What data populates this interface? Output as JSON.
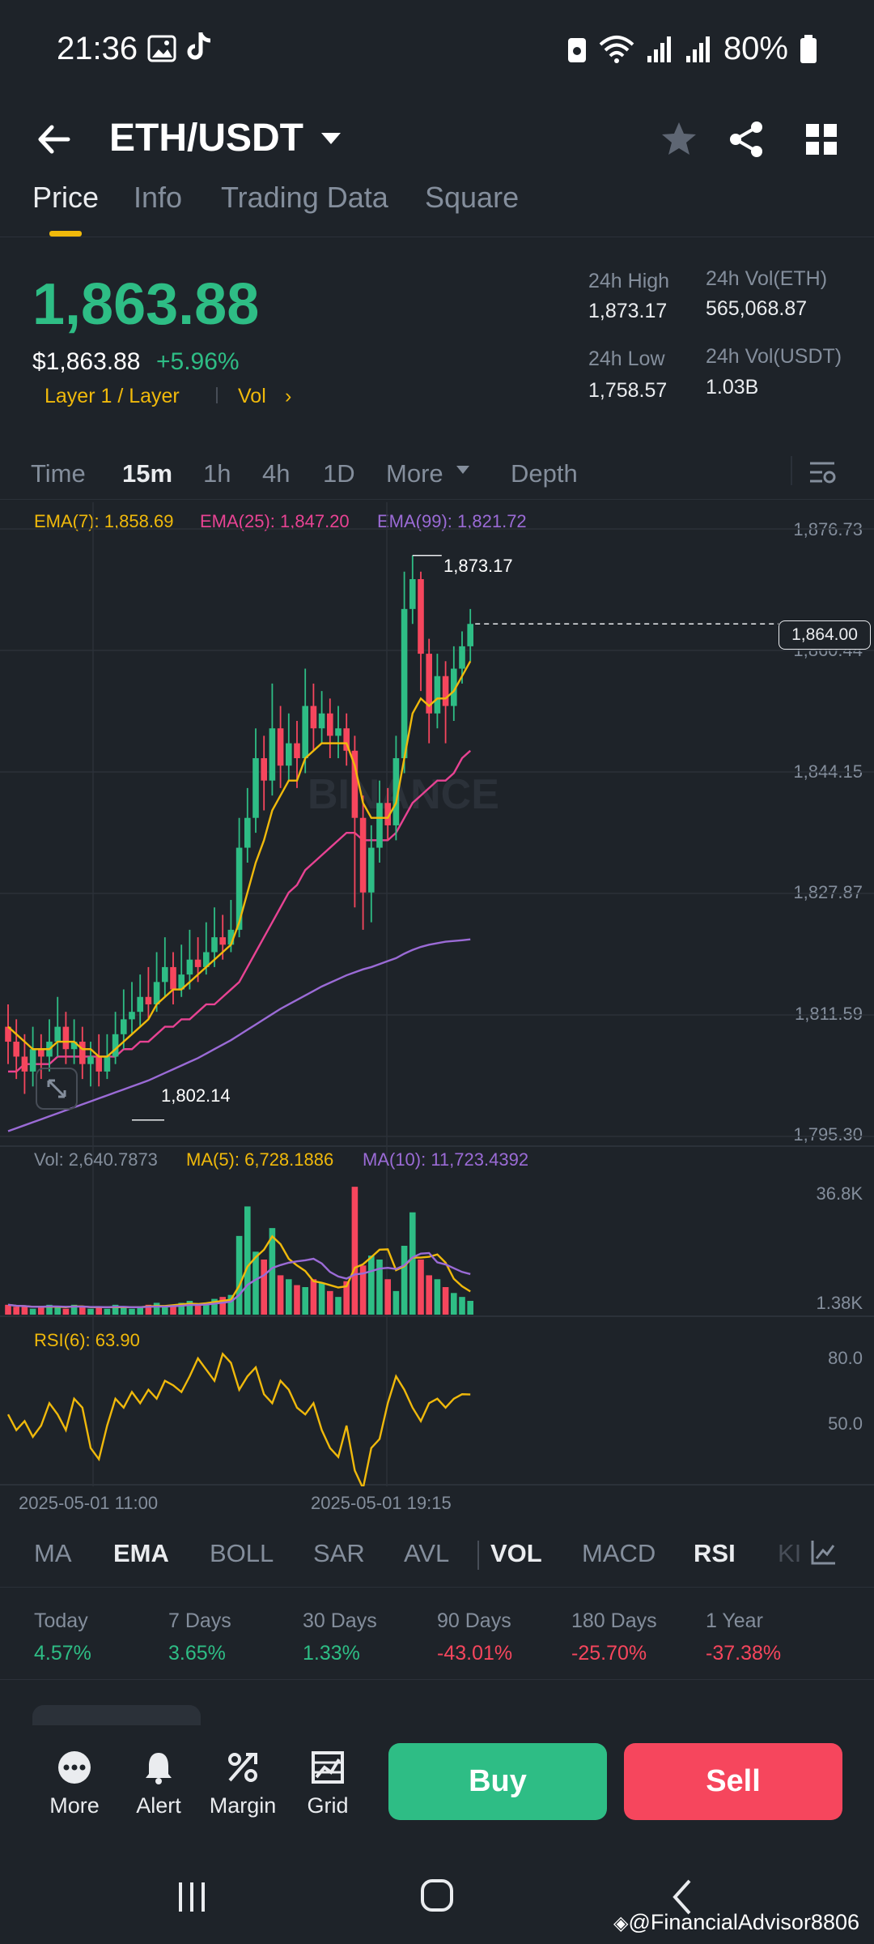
{
  "status": {
    "time": "21:36",
    "battery": "80%"
  },
  "header": {
    "pair": "ETH/USDT"
  },
  "tabs": [
    "Price",
    "Info",
    "Trading Data",
    "Square"
  ],
  "ticker": {
    "last_price": "1,863.88",
    "fiat_price": "$1,863.88",
    "change": "+5.96%",
    "tag1": "Layer 1 / Layer",
    "tag2": "Vol",
    "high_label": "24h High",
    "high_value": "1,873.17",
    "low_label": "24h Low",
    "low_value": "1,758.57",
    "vol_eth_label": "24h Vol(ETH)",
    "vol_eth_value": "565,068.87",
    "vol_usdt_label": "24h Vol(USDT)",
    "vol_usdt_value": "1.03B"
  },
  "intervals": [
    "Time",
    "15m",
    "1h",
    "4h",
    "1D",
    "More",
    "Depth"
  ],
  "ema": {
    "ema7": "EMA(7): 1,858.69",
    "ema25": "EMA(25): 1,847.20",
    "ema99": "EMA(99): 1,821.72"
  },
  "price_axis": [
    "1,876.73",
    "1,860.44",
    "1,844.15",
    "1,827.87",
    "1,811.59",
    "1,795.30"
  ],
  "current_price_tag": "1,864.00",
  "high_marker": "1,873.17",
  "low_marker": "1,802.14",
  "watermark": "BINANCE",
  "volume": {
    "vol": "Vol: 2,640.7873",
    "ma5": "MA(5): 6,728.1886",
    "ma10": "MA(10): 11,723.4392",
    "axis_top": "36.8K",
    "axis_bottom": "1.38K"
  },
  "rsi": {
    "label": "RSI(6): 63.90",
    "axis_top": "80.0",
    "axis_mid": "50.0"
  },
  "time_axis": [
    "2025-05-01 11:00",
    "2025-05-01 19:15"
  ],
  "indicator_tabs": [
    "MA",
    "EMA",
    "BOLL",
    "SAR",
    "AVL",
    "VOL",
    "MACD",
    "RSI",
    "KI"
  ],
  "performance": [
    {
      "label": "Today",
      "value": "4.57%"
    },
    {
      "label": "7 Days",
      "value": "3.65%"
    },
    {
      "label": "30 Days",
      "value": "1.33%"
    },
    {
      "label": "90 Days",
      "value": "-43.01%"
    },
    {
      "label": "180 Days",
      "value": "-25.70%"
    },
    {
      "label": "1 Year",
      "value": "-37.38%"
    }
  ],
  "bottom_bar": {
    "more": "More",
    "alert": "Alert",
    "margin": "Margin",
    "grid": "Grid",
    "buy": "Buy",
    "sell": "Sell"
  },
  "footer_handle": "@FinancialAdvisor8806",
  "colors": {
    "up": "#2ebd85",
    "down": "#f6465d",
    "accent": "#f0b90b",
    "ema7": "#f0b90b",
    "ema25": "#e84393",
    "ema99": "#9b6bd6"
  },
  "chart_data": {
    "type": "candlestick",
    "price_range": [
      1795.3,
      1876.73
    ],
    "candles": [
      [
        1810,
        1808,
        1813,
        1805
      ],
      [
        1808,
        1806,
        1811,
        1803
      ],
      [
        1806,
        1804,
        1809,
        1801
      ],
      [
        1804,
        1807,
        1810,
        1802
      ],
      [
        1807,
        1806,
        1809,
        1803
      ],
      [
        1806,
        1808,
        1811,
        1804
      ],
      [
        1808,
        1810,
        1814,
        1806
      ],
      [
        1810,
        1807,
        1812,
        1805
      ],
      [
        1807,
        1808,
        1811,
        1805
      ],
      [
        1808,
        1805,
        1810,
        1803
      ],
      [
        1805,
        1806,
        1808,
        1802
      ],
      [
        1806,
        1804,
        1809,
        1802
      ],
      [
        1804,
        1806,
        1809,
        1803
      ],
      [
        1806,
        1809,
        1812,
        1805
      ],
      [
        1809,
        1811,
        1815,
        1807
      ],
      [
        1811,
        1812,
        1816,
        1809
      ],
      [
        1812,
        1814,
        1817,
        1810
      ],
      [
        1814,
        1813,
        1818,
        1811
      ],
      [
        1813,
        1816,
        1820,
        1812
      ],
      [
        1816,
        1818,
        1822,
        1814
      ],
      [
        1818,
        1815,
        1820,
        1813
      ],
      [
        1815,
        1817,
        1821,
        1814
      ],
      [
        1817,
        1819,
        1823,
        1815
      ],
      [
        1819,
        1818,
        1822,
        1816
      ],
      [
        1818,
        1820,
        1824,
        1817
      ],
      [
        1820,
        1822,
        1826,
        1818
      ],
      [
        1822,
        1821,
        1825,
        1819
      ],
      [
        1821,
        1823,
        1827,
        1820
      ],
      [
        1823,
        1834,
        1838,
        1822
      ],
      [
        1834,
        1838,
        1842,
        1832
      ],
      [
        1838,
        1846,
        1850,
        1836
      ],
      [
        1846,
        1843,
        1849,
        1839
      ],
      [
        1843,
        1850,
        1856,
        1841
      ],
      [
        1850,
        1845,
        1853,
        1842
      ],
      [
        1845,
        1848,
        1852,
        1843
      ],
      [
        1848,
        1846,
        1851,
        1842
      ],
      [
        1846,
        1853,
        1858,
        1844
      ],
      [
        1853,
        1850,
        1856,
        1847
      ],
      [
        1850,
        1852,
        1855,
        1848
      ],
      [
        1852,
        1849,
        1854,
        1846
      ],
      [
        1849,
        1850,
        1853,
        1846
      ],
      [
        1850,
        1847,
        1852,
        1845
      ],
      [
        1847,
        1838,
        1849,
        1826
      ],
      [
        1838,
        1828,
        1841,
        1823
      ],
      [
        1828,
        1834,
        1837,
        1824
      ],
      [
        1834,
        1840,
        1843,
        1832
      ],
      [
        1840,
        1837,
        1842,
        1835
      ],
      [
        1837,
        1846,
        1849,
        1835
      ],
      [
        1846,
        1866,
        1871,
        1844
      ],
      [
        1866,
        1870,
        1873.17,
        1864
      ],
      [
        1870,
        1860,
        1871,
        1855
      ],
      [
        1860,
        1852,
        1862,
        1848
      ],
      [
        1852,
        1857,
        1860,
        1850
      ],
      [
        1857,
        1853,
        1859,
        1848
      ],
      [
        1853,
        1858,
        1861,
        1851
      ],
      [
        1858,
        1861,
        1863,
        1856
      ],
      [
        1861,
        1864,
        1866,
        1859
      ]
    ],
    "ema7": [
      1810,
      1809,
      1808,
      1807,
      1807,
      1807,
      1808,
      1808,
      1808,
      1807,
      1807,
      1806,
      1806,
      1807,
      1808,
      1809,
      1810,
      1811,
      1813,
      1814,
      1815,
      1815,
      1816,
      1817,
      1818,
      1819,
      1820,
      1821,
      1824,
      1828,
      1832,
      1835,
      1839,
      1841,
      1843,
      1843,
      1846,
      1847,
      1848,
      1848,
      1848,
      1848,
      1845,
      1840,
      1838,
      1838,
      1838,
      1840,
      1846,
      1852,
      1854,
      1853,
      1854,
      1854,
      1855,
      1857,
      1859
    ],
    "ema25": [
      1804,
      1804,
      1805,
      1805,
      1805,
      1805,
      1806,
      1806,
      1806,
      1806,
      1806,
      1806,
      1806,
      1806,
      1807,
      1807,
      1808,
      1808,
      1809,
      1810,
      1810,
      1811,
      1811,
      1812,
      1813,
      1813,
      1814,
      1815,
      1816,
      1818,
      1820,
      1822,
      1824,
      1826,
      1828,
      1829,
      1831,
      1832,
      1833,
      1834,
      1835,
      1836,
      1836,
      1835,
      1835,
      1835,
      1835,
      1836,
      1838,
      1840,
      1841,
      1842,
      1843,
      1843,
      1844,
      1846,
      1847
    ],
    "ema99": [
      1796,
      1796.4,
      1796.8,
      1797.2,
      1797.6,
      1798,
      1798.4,
      1798.8,
      1799.2,
      1799.6,
      1800,
      1800.4,
      1800.8,
      1801.2,
      1801.6,
      1802,
      1802.4,
      1802.8,
      1803.3,
      1803.8,
      1804.3,
      1804.8,
      1805.3,
      1805.8,
      1806.4,
      1807,
      1807.6,
      1808.2,
      1808.9,
      1809.6,
      1810.3,
      1811,
      1811.7,
      1812.4,
      1813,
      1813.6,
      1814.2,
      1814.8,
      1815.4,
      1815.9,
      1816.4,
      1816.9,
      1817.3,
      1817.7,
      1818,
      1818.4,
      1818.8,
      1819.2,
      1819.8,
      1820.3,
      1820.7,
      1821,
      1821.2,
      1821.4,
      1821.5,
      1821.6,
      1821.72
    ],
    "volume": [
      5,
      4,
      4,
      3,
      4,
      5,
      4,
      3,
      5,
      4,
      3,
      4,
      3,
      5,
      4,
      3,
      4,
      5,
      6,
      4,
      5,
      6,
      7,
      5,
      6,
      8,
      9,
      10,
      40,
      55,
      32,
      28,
      44,
      20,
      18,
      15,
      14,
      18,
      16,
      12,
      9,
      17,
      65,
      25,
      30,
      28,
      18,
      12,
      35,
      52,
      28,
      20,
      18,
      14,
      11,
      9,
      7
    ],
    "rsi": [
      55,
      48,
      52,
      45,
      50,
      60,
      55,
      48,
      62,
      58,
      40,
      35,
      50,
      62,
      58,
      65,
      60,
      66,
      62,
      70,
      68,
      65,
      72,
      80,
      75,
      70,
      82,
      78,
      66,
      72,
      76,
      64,
      60,
      70,
      66,
      58,
      55,
      60,
      48,
      40,
      36,
      50,
      30,
      22,
      40,
      44,
      60,
      72,
      66,
      58,
      52,
      60,
      62,
      58,
      62,
      64,
      63.9
    ]
  }
}
